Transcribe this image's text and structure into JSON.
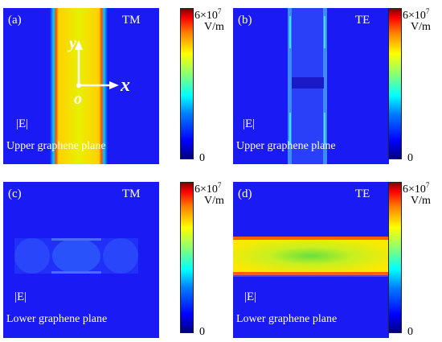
{
  "panels": [
    {
      "letter": "(a)",
      "mode": "TM",
      "field": "|E|",
      "plane": "Upper graphene plane"
    },
    {
      "letter": "(b)",
      "mode": "TE",
      "field": "|E|",
      "plane": "Upper graphene plane"
    },
    {
      "letter": "(c)",
      "mode": "TM",
      "field": "|E|",
      "plane": "Lower graphene plane"
    },
    {
      "letter": "(d)",
      "mode": "TE",
      "field": "|E|",
      "plane": "Lower graphene plane"
    }
  ],
  "axes": {
    "y": "y",
    "x": "x",
    "origin": "o"
  },
  "colorbar": {
    "max_mantissa": "6×10",
    "max_exp": "7",
    "unit": "V/m",
    "min": "0"
  },
  "colors": {
    "background_field": "#1a1af5",
    "colormap": [
      "#00007f",
      "#0000ff",
      "#00ffff",
      "#ffff00",
      "#ff0000",
      "#7f0000"
    ]
  }
}
